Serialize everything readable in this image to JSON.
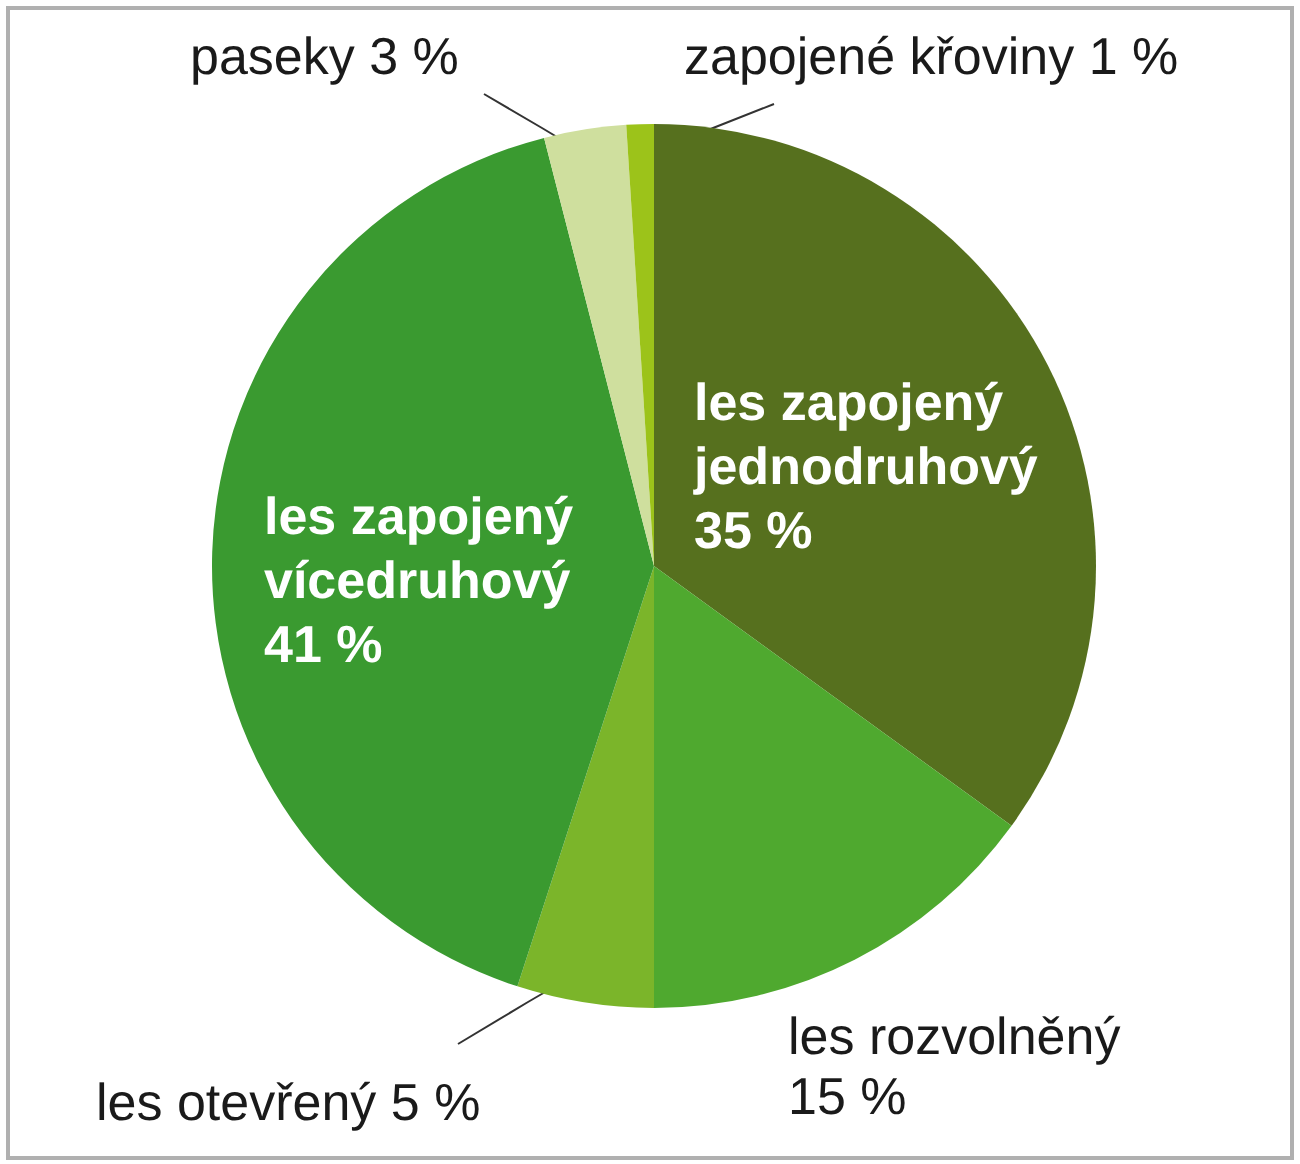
{
  "chart_data": {
    "type": "pie",
    "categories": [
      "les zapojený jednodruhový",
      "les rozvolněný",
      "les otevřený",
      "les zapojený vícedruhový",
      "paseky",
      "zapojené křoviny"
    ],
    "values": [
      35,
      15,
      5,
      41,
      3,
      1
    ],
    "colors": [
      "#56701e",
      "#4fa92f",
      "#7bb52a",
      "#3a9a30",
      "#cfdf9e",
      "#9cc31a"
    ],
    "value_labels": [
      "35 %",
      "15 %",
      "5 %",
      "41 %",
      "3 %",
      "1 %"
    ]
  }
}
